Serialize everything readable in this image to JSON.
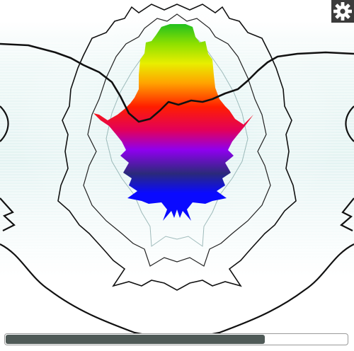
{
  "icons": {
    "settings": "gear-icon"
  },
  "colors": {
    "background": "#ffffff",
    "bar_fill": "#4f5a57",
    "bar_border": "#9a9a9a",
    "settings_bg": "#3b3b3b",
    "outline": "#111111",
    "glow": "#d6efee",
    "flame_gradient": [
      "#22c01e",
      "#e8ee00",
      "#ffa300",
      "#ff1e00",
      "#e2005a",
      "#8f00ee",
      "#2b2a7a",
      "#0a0aff"
    ]
  },
  "progress": {
    "fraction": 0.76
  }
}
